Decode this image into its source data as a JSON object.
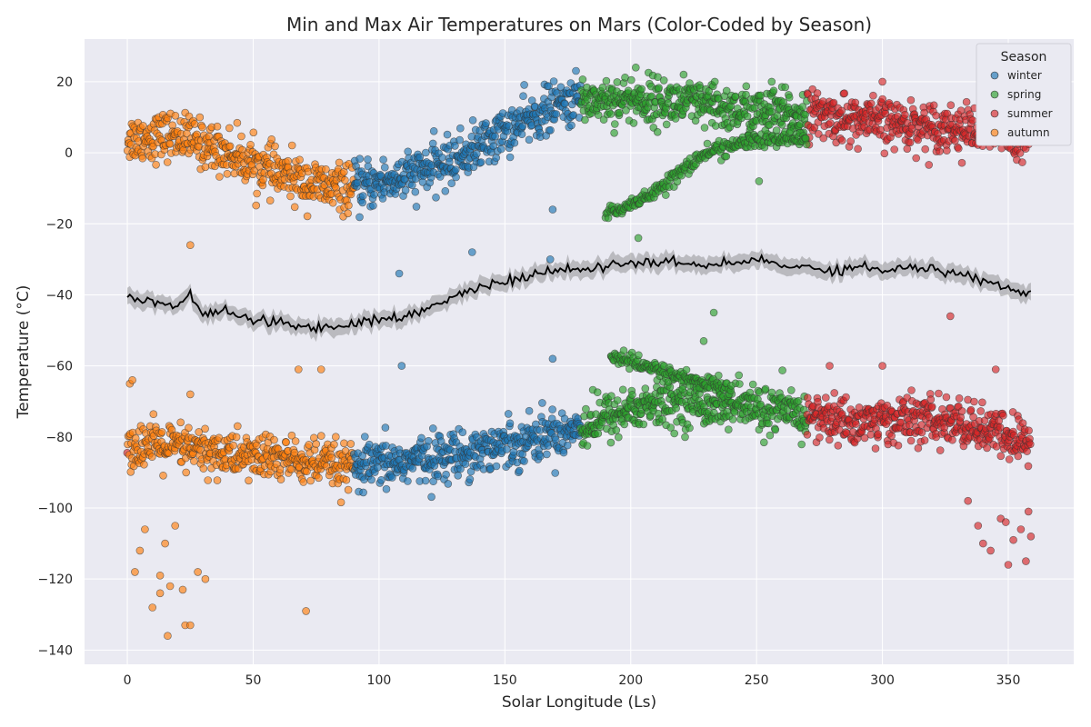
{
  "chart_data": {
    "type": "scatter",
    "title": "Min and Max Air Temperatures on Mars (Color-Coded by Season)",
    "xlabel": "Solar Longitude (Ls)",
    "ylabel": "Temperature (°C)",
    "xlim": [
      -17,
      376
    ],
    "ylim": [
      -144,
      32
    ],
    "xticks": [
      0,
      50,
      100,
      150,
      200,
      250,
      300,
      350
    ],
    "yticks": [
      -140,
      -120,
      -100,
      -80,
      -60,
      -40,
      -20,
      0,
      20
    ],
    "grid": true,
    "legend": {
      "title": "Season",
      "position": "top-right",
      "entries": [
        "winter",
        "spring",
        "summer",
        "autumn"
      ]
    },
    "colors": {
      "winter": "#1f77b4",
      "spring": "#2ca02c",
      "summer": "#d62728",
      "autumn": "#ff7f0e",
      "mean_line": "#000000",
      "band": "#808080"
    },
    "season_ranges": {
      "autumn": [
        0,
        89
      ],
      "winter": [
        90,
        179
      ],
      "spring": [
        180,
        269
      ],
      "summer": [
        270,
        359
      ]
    },
    "series": [
      {
        "name": "max_temp",
        "trend_x": [
          0,
          20,
          40,
          60,
          80,
          90,
          110,
          130,
          150,
          170,
          180,
          200,
          220,
          240,
          260,
          270,
          290,
          310,
          330,
          350,
          359
        ],
        "trend_y": [
          4,
          5,
          0,
          -6,
          -10,
          -10,
          -7,
          -2,
          6,
          13,
          15,
          15,
          14,
          12,
          11,
          11,
          9,
          8,
          7,
          5,
          5
        ],
        "spread": 6
      },
      {
        "name": "min_temp",
        "trend_x": [
          0,
          20,
          40,
          60,
          80,
          90,
          110,
          130,
          150,
          170,
          180,
          200,
          220,
          240,
          260,
          270,
          290,
          310,
          330,
          350,
          359
        ],
        "trend_y": [
          -82,
          -83,
          -85,
          -86,
          -88,
          -89,
          -87,
          -85,
          -82,
          -79,
          -77,
          -72,
          -70,
          -71,
          -73,
          -74,
          -76,
          -75,
          -76,
          -80,
          -82
        ],
        "spread": 6
      },
      {
        "name": "branch_spring_max",
        "trend_x": [
          190,
          200,
          215,
          230,
          245,
          260,
          270
        ],
        "trend_y": [
          -17,
          -15,
          -8,
          0,
          3,
          4,
          4
        ],
        "spread": 2
      },
      {
        "name": "branch_spring_min",
        "trend_x": [
          192,
          200,
          210,
          225,
          240
        ],
        "trend_y": [
          -57,
          -59,
          -61,
          -64,
          -67
        ],
        "spread": 2
      }
    ],
    "outliers": [
      {
        "x": 1,
        "y": -65
      },
      {
        "x": 2,
        "y": -64
      },
      {
        "x": 3,
        "y": -118
      },
      {
        "x": 5,
        "y": -112
      },
      {
        "x": 7,
        "y": -106
      },
      {
        "x": 10,
        "y": -128
      },
      {
        "x": 13,
        "y": -124
      },
      {
        "x": 13,
        "y": -119
      },
      {
        "x": 16,
        "y": -136
      },
      {
        "x": 17,
        "y": -122
      },
      {
        "x": 22,
        "y": -123
      },
      {
        "x": 23,
        "y": -133
      },
      {
        "x": 25,
        "y": -133
      },
      {
        "x": 28,
        "y": -118
      },
      {
        "x": 31,
        "y": -120
      },
      {
        "x": 15,
        "y": -110
      },
      {
        "x": 19,
        "y": -105
      },
      {
        "x": 71,
        "y": -129
      },
      {
        "x": 25,
        "y": -26
      },
      {
        "x": 25,
        "y": -68
      },
      {
        "x": 68,
        "y": -61
      },
      {
        "x": 77,
        "y": -61
      },
      {
        "x": 108,
        "y": -34
      },
      {
        "x": 109,
        "y": -60
      },
      {
        "x": 137,
        "y": -28
      },
      {
        "x": 169,
        "y": -16
      },
      {
        "x": 168,
        "y": -30
      },
      {
        "x": 169,
        "y": -58
      },
      {
        "x": 203,
        "y": -24
      },
      {
        "x": 233,
        "y": -45
      },
      {
        "x": 229,
        "y": -53
      },
      {
        "x": 251,
        "y": -8
      },
      {
        "x": 300,
        "y": -60
      },
      {
        "x": 279,
        "y": -60
      },
      {
        "x": 327,
        "y": -46
      },
      {
        "x": 345,
        "y": -61
      },
      {
        "x": 334,
        "y": -98
      },
      {
        "x": 338,
        "y": -105
      },
      {
        "x": 340,
        "y": -110
      },
      {
        "x": 343,
        "y": -112
      },
      {
        "x": 347,
        "y": -103
      },
      {
        "x": 349,
        "y": -104
      },
      {
        "x": 350,
        "y": -116
      },
      {
        "x": 352,
        "y": -109
      },
      {
        "x": 355,
        "y": -106
      },
      {
        "x": 357,
        "y": -115
      },
      {
        "x": 358,
        "y": -101
      },
      {
        "x": 359,
        "y": -108
      },
      {
        "x": 202,
        "y": 24
      },
      {
        "x": 221,
        "y": 22
      },
      {
        "x": 256,
        "y": 20
      },
      {
        "x": 300,
        "y": 20
      }
    ],
    "mean_series": {
      "x": [
        0,
        10,
        20,
        25,
        30,
        40,
        50,
        60,
        70,
        80,
        90,
        100,
        110,
        120,
        130,
        137,
        140,
        150,
        160,
        170,
        180,
        190,
        200,
        210,
        220,
        233,
        240,
        251,
        260,
        270,
        280,
        290,
        300,
        310,
        320,
        330,
        340,
        350,
        359
      ],
      "y": [
        -40,
        -42,
        -43,
        -40,
        -45,
        -45,
        -47,
        -48,
        -49,
        -49,
        -48,
        -47,
        -46,
        -44,
        -40,
        -39,
        -38,
        -36,
        -35,
        -33,
        -33,
        -32,
        -31,
        -31,
        -31,
        -32,
        -31,
        -30,
        -32,
        -32,
        -33,
        -32,
        -33,
        -32,
        -33,
        -34,
        -36,
        -38,
        -40
      ]
    }
  }
}
